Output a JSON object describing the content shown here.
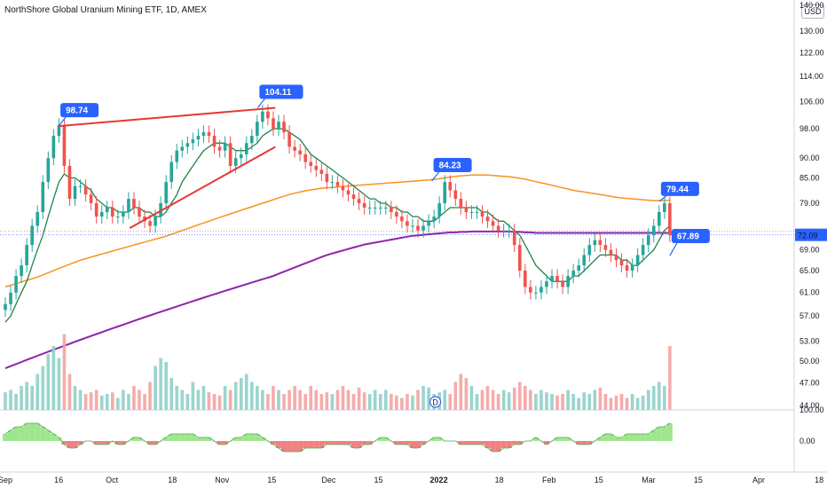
{
  "header": {
    "title": "NorthShore Global Uranium Mining ETF, 1D, AMEX",
    "currency": "USD"
  },
  "colors": {
    "up": "#26a69a",
    "down": "#ef5350",
    "ma_short": "#1e8449",
    "ma_mid": "#f7931e",
    "ma_long": "#8e24aa",
    "trendline": "#e53935",
    "callout": "#2962ff",
    "volume_up": "#8fd0c8",
    "volume_down": "#f4a3a2",
    "osc_up": "#8ee07a",
    "osc_down": "#ef6b6b"
  },
  "chart_data": {
    "type": "candlestick",
    "scale": "log",
    "y_ticks": [
      "44.00",
      "47.00",
      "50.00",
      "53.00",
      "57.00",
      "61.00",
      "65.00",
      "69.00",
      "72.00",
      "79.00",
      "85.00",
      "90.00",
      "98.00",
      "106.00",
      "114.00",
      "122.00",
      "130.00",
      "140.00"
    ],
    "ylim": [
      43,
      140
    ],
    "x_ticks": [
      {
        "label": "Sep",
        "x": "2021-09-01",
        "bold": false
      },
      {
        "label": "16",
        "x": "2021-09-16",
        "bold": false
      },
      {
        "label": "Oct",
        "x": "2021-10-01",
        "bold": false
      },
      {
        "label": "18",
        "x": "2021-10-18",
        "bold": false
      },
      {
        "label": "Nov",
        "x": "2021-11-01",
        "bold": false
      },
      {
        "label": "15",
        "x": "2021-11-15",
        "bold": false
      },
      {
        "label": "Dec",
        "x": "2021-12-01",
        "bold": false
      },
      {
        "label": "15",
        "x": "2021-12-15",
        "bold": false
      },
      {
        "label": "2022",
        "x": "2022-01-01",
        "bold": true
      },
      {
        "label": "18",
        "x": "2022-01-18",
        "bold": false
      },
      {
        "label": "Feb",
        "x": "2022-02-01",
        "bold": false
      },
      {
        "label": "15",
        "x": "2022-02-15",
        "bold": false
      },
      {
        "label": "Mar",
        "x": "2022-03-01",
        "bold": false
      },
      {
        "label": "15",
        "x": "2022-03-15",
        "bold": false
      },
      {
        "label": "Apr",
        "x": "2022-04-01",
        "bold": false
      },
      {
        "label": "18",
        "x": "2022-04-18",
        "bold": false
      }
    ],
    "last_price": "72.09",
    "annotations": [
      {
        "label": "98.74",
        "x": "2021-09-16",
        "y": 98.74
      },
      {
        "label": "104.11",
        "x": "2021-11-11",
        "y": 104.11
      },
      {
        "label": "84.23",
        "x": "2021-12-30",
        "y": 84.23
      },
      {
        "label": "79.44",
        "x": "2022-03-04",
        "y": 79.44
      },
      {
        "label": "67.89",
        "x": "2022-03-07",
        "y": 67.89
      }
    ],
    "trendlines": [
      {
        "from": {
          "x": "2021-09-16",
          "y": 98.74
        },
        "to": {
          "x": "2021-11-16",
          "y": 104.11
        }
      },
      {
        "from": {
          "x": "2021-10-06",
          "y": 73.5
        },
        "to": {
          "x": "2021-11-16",
          "y": 93
        }
      }
    ],
    "closes": [
      59,
      61,
      64,
      66,
      70,
      74,
      77,
      84,
      90,
      96,
      99,
      88,
      80,
      83,
      83,
      81,
      79,
      76,
      77,
      78,
      76,
      76,
      77,
      80,
      78,
      76,
      75,
      74,
      76,
      79,
      84,
      89,
      92,
      93,
      94,
      95,
      96,
      97,
      96,
      93,
      92,
      94,
      88,
      90,
      91,
      94,
      96,
      100,
      103,
      101,
      98,
      100,
      97,
      93,
      92,
      91,
      89,
      88,
      87,
      86,
      84,
      84,
      83,
      82,
      81,
      80,
      79,
      78,
      78,
      78,
      78,
      78,
      77,
      76,
      75,
      74,
      74,
      73,
      74,
      75,
      76,
      79,
      84,
      82,
      80,
      78,
      77,
      77,
      77,
      76,
      75,
      74,
      73,
      73,
      73,
      70,
      65,
      62,
      61,
      61,
      62,
      63,
      64,
      63,
      62,
      64,
      65,
      66,
      68,
      70,
      71,
      70,
      69,
      68,
      67,
      66,
      65,
      66,
      68,
      70,
      72,
      74,
      77,
      79,
      72
    ],
    "opens": [
      58,
      59,
      61,
      64,
      66,
      70,
      74,
      77,
      84,
      90,
      96,
      99,
      88,
      80,
      83,
      83,
      81,
      79,
      76,
      77,
      78,
      76,
      76,
      77,
      80,
      78,
      76,
      75,
      74,
      76,
      79,
      84,
      89,
      92,
      93,
      94,
      95,
      96,
      97,
      96,
      93,
      92,
      94,
      88,
      90,
      91,
      94,
      96,
      100,
      103,
      101,
      98,
      100,
      97,
      93,
      92,
      91,
      89,
      88,
      87,
      86,
      84,
      84,
      83,
      82,
      81,
      80,
      79,
      78,
      78,
      78,
      78,
      78,
      77,
      76,
      75,
      74,
      74,
      73,
      74,
      75,
      76,
      79,
      84,
      82,
      80,
      78,
      77,
      77,
      77,
      76,
      75,
      74,
      73,
      73,
      73,
      70,
      65,
      62,
      61,
      61,
      62,
      63,
      64,
      63,
      62,
      64,
      65,
      66,
      68,
      70,
      71,
      70,
      69,
      68,
      67,
      66,
      65,
      66,
      68,
      70,
      72,
      74,
      77,
      79
    ],
    "ma_short": [
      56,
      57,
      59,
      61,
      63,
      66,
      69,
      72,
      76,
      80,
      84,
      86,
      85,
      85,
      84,
      83,
      82,
      80,
      79,
      78,
      78,
      77,
      77,
      77,
      78,
      78,
      77,
      77,
      76,
      76,
      77,
      79,
      81,
      84,
      86,
      88,
      90,
      92,
      93,
      94,
      94,
      94,
      93,
      92,
      92,
      92,
      93,
      94,
      96,
      97,
      98,
      98,
      98,
      97,
      96,
      95,
      93,
      91,
      90,
      89,
      88,
      87,
      86,
      85,
      84,
      83,
      82,
      81,
      80,
      80,
      79,
      79,
      78,
      78,
      77,
      77,
      76,
      76,
      75,
      75,
      75,
      76,
      77,
      78,
      78,
      78,
      78,
      78,
      78,
      77,
      77,
      76,
      75,
      75,
      74,
      73,
      72,
      70,
      68,
      66,
      65,
      64,
      63,
      63,
      63,
      63,
      64,
      64,
      65,
      66,
      67,
      68,
      68,
      68,
      68,
      67,
      67,
      66,
      66,
      67,
      68,
      69,
      71,
      73,
      74
    ],
    "ma_mid": [
      62,
      62.3,
      62.6,
      62.9,
      63.2,
      63.5,
      63.8,
      64.2,
      64.6,
      65,
      65.4,
      65.8,
      66.2,
      66.6,
      67,
      67.3,
      67.6,
      67.9,
      68.2,
      68.5,
      68.8,
      69.1,
      69.4,
      69.7,
      70,
      70.3,
      70.6,
      70.9,
      71.2,
      71.5,
      71.8,
      72.2,
      72.6,
      73,
      73.4,
      73.8,
      74.2,
      74.6,
      75,
      75.4,
      75.8,
      76.2,
      76.6,
      77,
      77.4,
      77.8,
      78.2,
      78.6,
      79,
      79.4,
      79.8,
      80.2,
      80.6,
      81,
      81.3,
      81.6,
      81.9,
      82.1,
      82.3,
      82.5,
      82.6,
      82.7,
      82.8,
      82.9,
      83,
      83.1,
      83.2,
      83.3,
      83.4,
      83.5,
      83.6,
      83.7,
      83.8,
      83.9,
      84,
      84.1,
      84.2,
      84.3,
      84.4,
      84.5,
      84.6,
      84.8,
      85,
      85.2,
      85.4,
      85.5,
      85.6,
      85.7,
      85.7,
      85.7,
      85.7,
      85.6,
      85.5,
      85.4,
      85.3,
      85.1,
      84.9,
      84.7,
      84.4,
      84.1,
      83.8,
      83.5,
      83.2,
      82.9,
      82.6,
      82.3,
      82,
      81.8,
      81.6,
      81.4,
      81.2,
      81,
      80.8,
      80.6,
      80.4,
      80.2,
      80.1,
      80,
      79.9,
      79.8,
      79.7,
      79.6,
      79.6,
      79.6,
      79.7
    ],
    "ma_long": [
      49,
      49.3,
      49.6,
      49.9,
      50.2,
      50.5,
      50.8,
      51.1,
      51.4,
      51.7,
      52,
      52.3,
      52.6,
      52.9,
      53.2,
      53.5,
      53.8,
      54.1,
      54.4,
      54.7,
      55,
      55.3,
      55.6,
      55.9,
      56.2,
      56.5,
      56.8,
      57.1,
      57.4,
      57.7,
      58,
      58.3,
      58.6,
      58.9,
      59.2,
      59.5,
      59.8,
      60.1,
      60.4,
      60.7,
      61,
      61.3,
      61.6,
      61.9,
      62.2,
      62.5,
      62.8,
      63.1,
      63.4,
      63.7,
      64,
      64.4,
      64.8,
      65.2,
      65.6,
      66,
      66.4,
      66.8,
      67.2,
      67.6,
      68,
      68.3,
      68.6,
      68.9,
      69.2,
      69.5,
      69.8,
      70.1,
      70.3,
      70.5,
      70.7,
      70.9,
      71.1,
      71.3,
      71.5,
      71.7,
      71.9,
      72,
      72.1,
      72.2,
      72.3,
      72.4,
      72.5,
      72.6,
      72.6,
      72.7,
      72.7,
      72.8,
      72.8,
      72.8,
      72.8,
      72.8,
      72.8,
      72.8,
      72.8,
      72.7,
      72.7,
      72.6,
      72.6,
      72.5,
      72.5,
      72.5,
      72.5,
      72.5,
      72.5,
      72.5,
      72.5,
      72.5,
      72.5,
      72.5,
      72.5,
      72.5,
      72.5,
      72.5,
      72.5,
      72.5,
      72.5,
      72.5,
      72.5,
      72.5,
      72.5,
      72.5,
      72.5,
      72.5,
      72.5,
      72.4
    ],
    "volume_ticks": [
      "100.00"
    ],
    "volume": [
      0.22,
      0.25,
      0.2,
      0.3,
      0.35,
      0.3,
      0.45,
      0.55,
      0.7,
      0.8,
      0.65,
      0.95,
      0.45,
      0.3,
      0.25,
      0.2,
      0.22,
      0.25,
      0.18,
      0.2,
      0.22,
      0.15,
      0.25,
      0.2,
      0.3,
      0.25,
      0.2,
      0.35,
      0.55,
      0.65,
      0.6,
      0.4,
      0.3,
      0.25,
      0.2,
      0.35,
      0.25,
      0.3,
      0.22,
      0.2,
      0.18,
      0.3,
      0.25,
      0.35,
      0.4,
      0.45,
      0.35,
      0.3,
      0.25,
      0.2,
      0.3,
      0.25,
      0.2,
      0.25,
      0.3,
      0.25,
      0.2,
      0.3,
      0.25,
      0.2,
      0.22,
      0.2,
      0.25,
      0.3,
      0.25,
      0.2,
      0.28,
      0.22,
      0.2,
      0.25,
      0.2,
      0.25,
      0.2,
      0.18,
      0.15,
      0.2,
      0.18,
      0.25,
      0.3,
      0.28,
      0.2,
      0.22,
      0.25,
      0.2,
      0.35,
      0.45,
      0.4,
      0.3,
      0.2,
      0.25,
      0.3,
      0.25,
      0.2,
      0.25,
      0.22,
      0.28,
      0.35,
      0.3,
      0.25,
      0.2,
      0.25,
      0.22,
      0.2,
      0.18,
      0.2,
      0.25,
      0.2,
      0.15,
      0.22,
      0.2,
      0.25,
      0.28,
      0.2,
      0.15,
      0.18,
      0.2,
      0.15,
      0.2,
      0.15,
      0.18,
      0.25,
      0.3,
      0.35,
      0.3,
      0.8
    ],
    "osc_ticks": [
      "100.00",
      "0.00"
    ],
    "osc": [
      2,
      3,
      4,
      4,
      5,
      5,
      5,
      4,
      3,
      2,
      1,
      -1,
      -2,
      -2,
      -1,
      0,
      0,
      -1,
      -1,
      -1,
      0,
      -1,
      -1,
      0,
      1,
      1,
      0,
      -1,
      -1,
      0,
      1,
      2,
      2,
      2,
      2,
      2,
      1,
      1,
      1,
      0,
      -1,
      -1,
      0,
      1,
      1,
      2,
      2,
      2,
      1,
      0,
      -1,
      -2,
      -3,
      -3,
      -3,
      -3,
      -2,
      -2,
      -2,
      -2,
      -1,
      -1,
      -1,
      -1,
      -1,
      -2,
      -2,
      -1,
      -1,
      0,
      1,
      1,
      0,
      -1,
      -1,
      -1,
      -2,
      -2,
      -1,
      0,
      1,
      1,
      0,
      0,
      0,
      -1,
      -1,
      -1,
      -1,
      -1,
      -2,
      -3,
      -3,
      -2,
      -2,
      -1,
      -1,
      0,
      0,
      1,
      0,
      -1,
      0,
      1,
      1,
      1,
      0,
      -1,
      -1,
      -1,
      0,
      1,
      2,
      2,
      1,
      1,
      2,
      2,
      2,
      2,
      2,
      3,
      4,
      4,
      5
    ]
  }
}
